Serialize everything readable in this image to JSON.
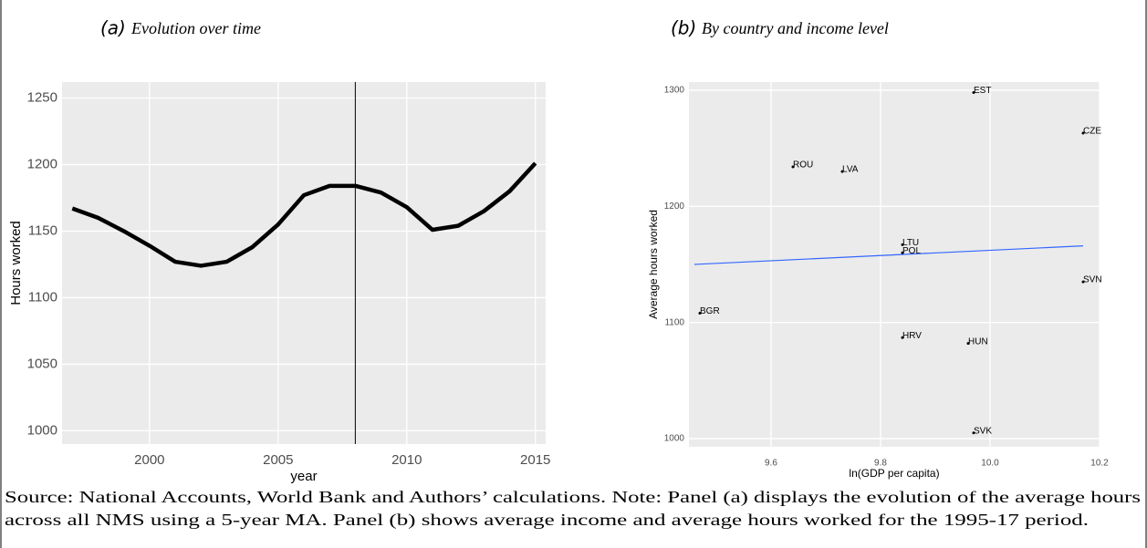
{
  "chart_data": [
    {
      "type": "line",
      "panel": "(a)",
      "title": "Evolution over time",
      "x_label": "year",
      "y_label": "Hours worked",
      "x": [
        1997,
        1998,
        1999,
        2000,
        2001,
        2002,
        2003,
        2004,
        2005,
        2006,
        2007,
        2008,
        2009,
        2010,
        2011,
        2012,
        2013,
        2014,
        2015
      ],
      "values": [
        1167,
        1160,
        1150,
        1139,
        1127,
        1124,
        1127,
        1138,
        1155,
        1177,
        1184,
        1184,
        1179,
        1168,
        1151,
        1154,
        1165,
        1180,
        1201
      ],
      "color": "#000000",
      "xlim": [
        1996.6,
        2015.4
      ],
      "xticks": [
        2000,
        2005,
        2010,
        2015
      ],
      "ylim": [
        990,
        1262
      ],
      "yticks": [
        1000,
        1050,
        1100,
        1150,
        1200,
        1250
      ],
      "vline": 2008,
      "grid": true
    },
    {
      "type": "scatter",
      "panel": "(b)",
      "title": "By country and income level",
      "x_label": "ln(GDP per capita)",
      "y_label": "Average hours worked",
      "labels": [
        "EST",
        "CZE",
        "ROU",
        "LVA",
        "LTU",
        "POL",
        "SVN",
        "BGR",
        "HRV",
        "HUN",
        "SVK"
      ],
      "x": [
        9.97,
        10.17,
        9.64,
        9.73,
        9.84,
        9.84,
        10.17,
        9.47,
        9.84,
        9.96,
        9.97
      ],
      "values": [
        1298,
        1263,
        1234,
        1230,
        1167,
        1160,
        1135,
        1108,
        1087,
        1082,
        1005
      ],
      "color": "#000000",
      "trend": {
        "x": [
          9.46,
          10.17
        ],
        "y": [
          1150,
          1166
        ],
        "color": "#3366ff"
      },
      "xlim": [
        9.45,
        10.2
      ],
      "xticks": [
        9.6,
        9.8,
        {
          "value": 10.0,
          "label": "10.0"
        },
        10.2
      ],
      "ylim": [
        993,
        1307
      ],
      "yticks": [
        1000,
        1100,
        1200,
        1300
      ],
      "grid": true
    }
  ],
  "caption": [
    "Source: National Accounts, World Bank and Authors’ calculations. Note: Panel (a) displays the evolution of the average hours",
    "across all NMS using a 5-year MA. Panel (b) shows average income and average hours worked for the 1995-17 period."
  ]
}
